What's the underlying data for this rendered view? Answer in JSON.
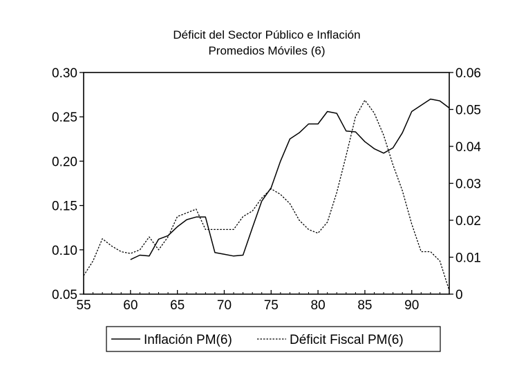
{
  "chart_data": {
    "type": "line",
    "title": "Déficit del Sector Público e Inflación",
    "subtitle": "Promedios Móviles (6)",
    "xlabel": "",
    "ylabel": "",
    "xlim": [
      55,
      94
    ],
    "x_ticks": [
      55,
      60,
      65,
      70,
      75,
      80,
      85,
      90
    ],
    "x_tick_labels": [
      "55",
      "60",
      "65",
      "70",
      "75",
      "80",
      "85",
      "90"
    ],
    "y_left": {
      "lim": [
        0.05,
        0.3
      ],
      "ticks": [
        0.05,
        0.1,
        0.15,
        0.2,
        0.25,
        0.3
      ],
      "tick_labels": [
        "0.05",
        "0.10",
        "0.15",
        "0.20",
        "0.25",
        "0.30"
      ]
    },
    "y_right": {
      "lim": [
        0,
        0.06
      ],
      "ticks": [
        0,
        0.01,
        0.02,
        0.03,
        0.04,
        0.05,
        0.06
      ],
      "tick_labels": [
        "0",
        "0.01",
        "0.02",
        "0.03",
        "0.04",
        "0.05",
        "0.06"
      ]
    },
    "grid": false,
    "legend_position": "bottom",
    "series": [
      {
        "name": "Inflación PM(6)",
        "axis": "left",
        "style": "solid",
        "x": [
          60,
          61,
          62,
          63,
          64,
          65,
          66,
          67,
          68,
          69,
          70,
          71,
          72,
          73,
          74,
          75,
          76,
          77,
          78,
          79,
          80,
          81,
          82,
          83,
          84,
          85,
          86,
          87,
          88,
          89,
          90,
          91,
          92,
          93,
          94
        ],
        "values": [
          0.089,
          0.094,
          0.093,
          0.112,
          0.116,
          0.126,
          0.134,
          0.137,
          0.137,
          0.097,
          0.095,
          0.093,
          0.094,
          0.125,
          0.155,
          0.17,
          0.2,
          0.225,
          0.232,
          0.242,
          0.242,
          0.256,
          0.254,
          0.234,
          0.233,
          0.222,
          0.214,
          0.209,
          0.215,
          0.232,
          0.256,
          0.263,
          0.27,
          0.268,
          0.26
        ]
      },
      {
        "name": "Déficit Fiscal PM(6)",
        "axis": "right",
        "style": "dashed",
        "x": [
          55,
          56,
          57,
          58,
          59,
          60,
          61,
          62,
          63,
          64,
          65,
          66,
          67,
          68,
          69,
          70,
          71,
          72,
          73,
          74,
          75,
          76,
          77,
          78,
          79,
          80,
          81,
          82,
          83,
          84,
          85,
          86,
          87,
          88,
          89,
          90,
          91,
          92,
          93,
          94
        ],
        "values": [
          0.005,
          0.009,
          0.015,
          0.013,
          0.0115,
          0.011,
          0.012,
          0.0155,
          0.012,
          0.0155,
          0.021,
          0.022,
          0.023,
          0.0175,
          0.0175,
          0.0175,
          0.0175,
          0.021,
          0.0225,
          0.026,
          0.0285,
          0.027,
          0.0245,
          0.02,
          0.0175,
          0.0165,
          0.0195,
          0.0275,
          0.0375,
          0.048,
          0.0525,
          0.049,
          0.043,
          0.035,
          0.028,
          0.019,
          0.0115,
          0.0115,
          0.009,
          0.001
        ]
      }
    ]
  }
}
